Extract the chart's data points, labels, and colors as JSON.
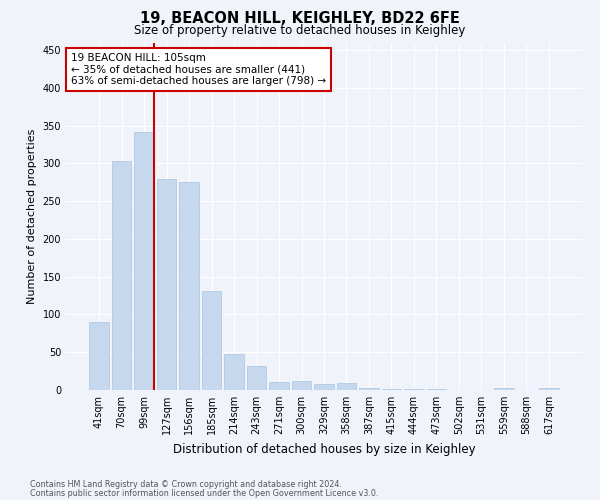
{
  "title": "19, BEACON HILL, KEIGHLEY, BD22 6FE",
  "subtitle": "Size of property relative to detached houses in Keighley",
  "xlabel": "Distribution of detached houses by size in Keighley",
  "ylabel": "Number of detached properties",
  "bar_color": "#c5d8ed",
  "bar_edgecolor": "#aac4e0",
  "background_color": "#f0f4fa",
  "grid_color": "#ffffff",
  "categories": [
    "41sqm",
    "70sqm",
    "99sqm",
    "127sqm",
    "156sqm",
    "185sqm",
    "214sqm",
    "243sqm",
    "271sqm",
    "300sqm",
    "329sqm",
    "358sqm",
    "387sqm",
    "415sqm",
    "444sqm",
    "473sqm",
    "502sqm",
    "531sqm",
    "559sqm",
    "588sqm",
    "617sqm"
  ],
  "values": [
    90,
    303,
    342,
    279,
    275,
    131,
    47,
    32,
    10,
    12,
    8,
    9,
    3,
    1,
    1,
    1,
    0,
    0,
    3,
    0,
    3
  ],
  "ylim": [
    0,
    460
  ],
  "yticks": [
    0,
    50,
    100,
    150,
    200,
    250,
    300,
    350,
    400,
    450
  ],
  "marker_bin_idx": 2,
  "marker_label": "19 BEACON HILL: 105sqm",
  "annotation_line1": "← 35% of detached houses are smaller (441)",
  "annotation_line2": "63% of semi-detached houses are larger (798) →",
  "marker_color": "#cc0000",
  "annotation_box_color": "#ffffff",
  "annotation_box_edgecolor": "#cc0000",
  "footnote1": "Contains HM Land Registry data © Crown copyright and database right 2024.",
  "footnote2": "Contains public sector information licensed under the Open Government Licence v3.0."
}
